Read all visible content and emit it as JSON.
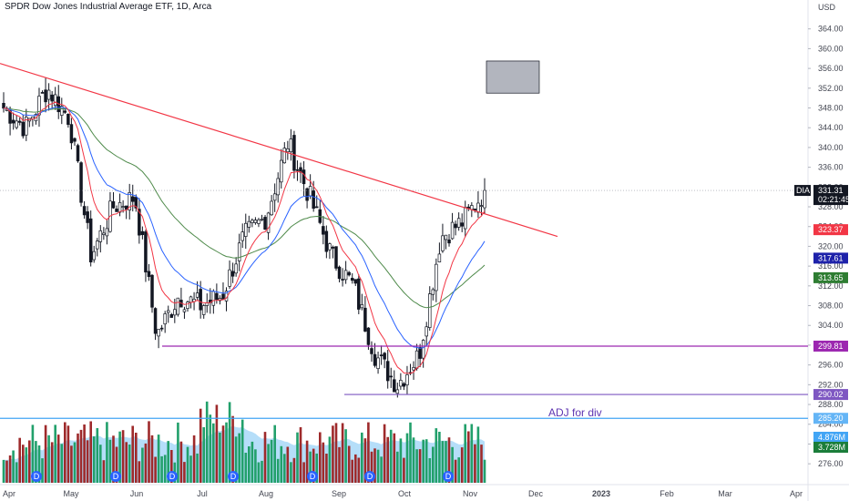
{
  "title": "SPDR Dow Jones Industrial Average ETF, 1D, Arca",
  "currency": "USD",
  "annotation": "ADJ for div",
  "chart_data": {
    "type": "candlestick",
    "title": "SPDR Dow Jones Industrial Average ETF, 1D, Arca",
    "y_axis_unit": "USD",
    "y_range": [
      274,
      368
    ],
    "y_ticks": [
      276,
      280,
      284,
      288,
      292,
      296,
      300,
      304,
      308,
      312,
      316,
      320,
      324,
      328,
      332,
      336,
      340,
      344,
      348,
      352,
      356,
      360,
      364
    ],
    "x_ticks": [
      "Apr",
      "May",
      "Jun",
      "Jul",
      "Aug",
      "Sep",
      "Oct",
      "Nov",
      "Dec",
      "2023",
      "Feb",
      "Mar",
      "Apr"
    ],
    "price_points": [
      {
        "date": "Apr",
        "close": 348
      },
      {
        "date": "mid-Apr",
        "close": 344
      },
      {
        "date": "late-Apr",
        "close": 352
      },
      {
        "date": "May",
        "close": 346
      },
      {
        "date": "mid-May",
        "close": 318
      },
      {
        "date": "late-May",
        "close": 328
      },
      {
        "date": "Jun",
        "close": 330
      },
      {
        "date": "mid-Jun",
        "close": 302
      },
      {
        "date": "late-Jun",
        "close": 310
      },
      {
        "date": "Jul",
        "close": 308
      },
      {
        "date": "mid-Jul",
        "close": 310
      },
      {
        "date": "late-Jul",
        "close": 322
      },
      {
        "date": "Aug",
        "close": 326
      },
      {
        "date": "mid-Aug",
        "close": 341
      },
      {
        "date": "late-Aug",
        "close": 330
      },
      {
        "date": "Sep",
        "close": 318
      },
      {
        "date": "mid-Sep",
        "close": 312
      },
      {
        "date": "late-Sep",
        "close": 298
      },
      {
        "date": "Oct",
        "close": 292
      },
      {
        "date": "mid-Oct",
        "close": 298
      },
      {
        "date": "late-Oct",
        "close": 322
      },
      {
        "date": "Nov",
        "close": 325
      },
      {
        "date": "early-Nov",
        "close": 331.31
      }
    ],
    "trendline": {
      "from": {
        "date": "Apr",
        "price": 357
      },
      "to": {
        "date": "late-Nov",
        "price": 322
      }
    },
    "horizontal_levels": [
      299.81,
      290.02,
      285.2
    ],
    "projection_box": {
      "price_top": 357.5,
      "price_bottom": 351
    },
    "price_labels": [
      {
        "name": "last",
        "prefix": "DIA",
        "value": "331.31",
        "sub": "02:21:45",
        "color": "#131722"
      },
      {
        "name": "ema-fast",
        "value": "323.37",
        "color": "#f23645"
      },
      {
        "name": "ema-mid",
        "value": "317.61",
        "color": "#1e22aa"
      },
      {
        "name": "ema-slow",
        "value": "313.65",
        "color": "#2e7d32"
      },
      {
        "name": "level-1",
        "value": "299.81",
        "color": "#9c27b0"
      },
      {
        "name": "level-2",
        "value": "290.02",
        "color": "#7e57c2"
      },
      {
        "name": "level-3",
        "value": "285.20",
        "color": "#64b5f6"
      },
      {
        "name": "vol-ma",
        "value": "4.876M",
        "color": "#42a5f5"
      },
      {
        "name": "volume",
        "value": "3.728M",
        "color": "#1b7d3a"
      }
    ],
    "dividend_markers": [
      "D",
      "D",
      "D",
      "D",
      "D",
      "D",
      "D",
      "D"
    ]
  }
}
